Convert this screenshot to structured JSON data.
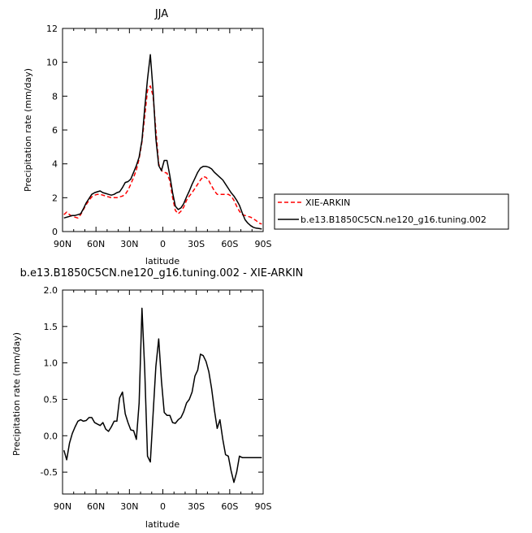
{
  "chart_data": [
    {
      "type": "line",
      "title": "JJA",
      "xlabel": "latitude",
      "ylabel": "Precipitation rate (mm/day)",
      "xlim": [
        90,
        -90
      ],
      "ylim": [
        0,
        12
      ],
      "x_ticks": [
        90,
        60,
        30,
        0,
        -30,
        -60,
        -90
      ],
      "x_tick_labels": [
        "90N",
        "60N",
        "30N",
        "0",
        "30S",
        "60S",
        "90S"
      ],
      "y_ticks": [
        0,
        2,
        4,
        6,
        8,
        10,
        12
      ],
      "y_tick_labels": [
        "0",
        "2",
        "4",
        "6",
        "8",
        "10",
        "12"
      ],
      "grid": false,
      "legend_placement": "right",
      "series": [
        {
          "name": "XIE-ARKIN",
          "color": "#ff0000",
          "dash": "dashed",
          "x": [
            88.75,
            86.25,
            83.75,
            81.25,
            78.75,
            76.25,
            73.75,
            71.25,
            68.75,
            66.25,
            63.75,
            61.25,
            58.75,
            56.25,
            53.75,
            51.25,
            48.75,
            46.25,
            43.75,
            41.25,
            38.75,
            36.25,
            33.75,
            31.25,
            28.75,
            26.25,
            23.75,
            21.25,
            18.75,
            16.25,
            13.75,
            11.25,
            8.75,
            6.25,
            3.75,
            1.25,
            -1.25,
            -3.75,
            -6.25,
            -8.75,
            -11.25,
            -13.75,
            -16.25,
            -18.75,
            -21.25,
            -23.75,
            -26.25,
            -28.75,
            -31.25,
            -33.75,
            -36.25,
            -38.75,
            -41.25,
            -43.75,
            -46.25,
            -48.75,
            -51.25,
            -53.75,
            -56.25,
            -58.75,
            -61.25,
            -63.75,
            -66.25,
            -68.75,
            -71.25,
            -73.75,
            -76.25,
            -78.75,
            -81.25,
            -83.75,
            -86.25,
            -88.75
          ],
          "values": [
            1.0,
            1.15,
            1.0,
            0.9,
            0.85,
            0.8,
            1.0,
            1.3,
            1.6,
            1.85,
            2.05,
            2.15,
            2.2,
            2.2,
            2.15,
            2.1,
            2.05,
            2.0,
            2.0,
            2.0,
            2.05,
            2.1,
            2.2,
            2.45,
            2.8,
            3.2,
            3.65,
            4.3,
            5.3,
            6.8,
            8.35,
            8.6,
            8.0,
            6.0,
            4.0,
            3.6,
            3.5,
            3.45,
            3.0,
            2.0,
            1.25,
            1.05,
            1.2,
            1.45,
            1.85,
            2.1,
            2.3,
            2.55,
            2.8,
            3.05,
            3.25,
            3.2,
            3.0,
            2.7,
            2.4,
            2.2,
            2.2,
            2.2,
            2.2,
            2.2,
            2.1,
            1.85,
            1.5,
            1.2,
            1.0,
            0.95,
            0.9,
            0.85,
            0.75,
            0.65,
            0.5,
            0.45
          ]
        },
        {
          "name": "b.e13.B1850C5CN.ne120_g16.tuning.002",
          "color": "#000000",
          "dash": "solid",
          "x": [
            88.75,
            86.25,
            83.75,
            81.25,
            78.75,
            76.25,
            73.75,
            71.25,
            68.75,
            66.25,
            63.75,
            61.25,
            58.75,
            56.25,
            53.75,
            51.25,
            48.75,
            46.25,
            43.75,
            41.25,
            38.75,
            36.25,
            33.75,
            31.25,
            28.75,
            26.25,
            23.75,
            21.25,
            18.75,
            16.25,
            13.75,
            11.25,
            8.75,
            6.25,
            3.75,
            1.25,
            -1.25,
            -3.75,
            -6.25,
            -8.75,
            -11.25,
            -13.75,
            -16.25,
            -18.75,
            -21.25,
            -23.75,
            -26.25,
            -28.75,
            -31.25,
            -33.75,
            -36.25,
            -38.75,
            -41.25,
            -43.75,
            -46.25,
            -48.75,
            -51.25,
            -53.75,
            -56.25,
            -58.75,
            -61.25,
            -63.75,
            -66.25,
            -68.75,
            -71.25,
            -73.75,
            -76.25,
            -78.75,
            -81.25,
            -83.75,
            -86.25,
            -88.75
          ],
          "values": [
            0.8,
            0.85,
            0.9,
            0.95,
            0.95,
            1.0,
            1.05,
            1.35,
            1.7,
            1.95,
            2.2,
            2.3,
            2.35,
            2.4,
            2.3,
            2.25,
            2.2,
            2.15,
            2.2,
            2.3,
            2.35,
            2.6,
            2.9,
            2.95,
            3.1,
            3.5,
            3.9,
            4.4,
            5.4,
            7.3,
            9.0,
            10.45,
            8.3,
            5.5,
            3.9,
            3.6,
            4.2,
            4.2,
            3.3,
            2.3,
            1.5,
            1.3,
            1.4,
            1.65,
            2.05,
            2.4,
            2.8,
            3.15,
            3.5,
            3.75,
            3.85,
            3.85,
            3.8,
            3.7,
            3.5,
            3.35,
            3.2,
            3.05,
            2.8,
            2.55,
            2.3,
            2.1,
            1.85,
            1.55,
            1.1,
            0.7,
            0.5,
            0.35,
            0.25,
            0.2,
            0.18,
            0.15
          ]
        }
      ]
    },
    {
      "type": "line",
      "title": "b.e13.B1850C5CN.ne120_g16.tuning.002 - XIE-ARKIN",
      "xlabel": "latitude",
      "ylabel": "Precipitation rate (mm/day)",
      "xlim": [
        90,
        -90
      ],
      "ylim": [
        -0.8,
        2.0
      ],
      "x_ticks": [
        90,
        60,
        30,
        0,
        -30,
        -60,
        -90
      ],
      "x_tick_labels": [
        "90N",
        "60N",
        "30N",
        "0",
        "30S",
        "60S",
        "90S"
      ],
      "y_ticks": [
        -0.5,
        0.0,
        0.5,
        1.0,
        1.5,
        2.0
      ],
      "y_tick_labels": [
        "-0.5",
        "0.0",
        "0.5",
        "1.0",
        "1.5",
        "2.0"
      ],
      "grid": false,
      "series": [
        {
          "color": "#000000",
          "dash": "solid",
          "x": [
            88.75,
            86.25,
            83.75,
            81.25,
            78.75,
            76.25,
            73.75,
            71.25,
            68.75,
            66.25,
            63.75,
            61.25,
            58.75,
            56.25,
            53.75,
            51.25,
            48.75,
            46.25,
            43.75,
            41.25,
            38.75,
            36.25,
            33.75,
            31.25,
            28.75,
            26.25,
            23.75,
            21.25,
            18.75,
            16.25,
            13.75,
            11.25,
            8.75,
            6.25,
            3.75,
            1.25,
            -1.25,
            -3.75,
            -6.25,
            -8.75,
            -11.25,
            -13.75,
            -16.25,
            -18.75,
            -21.25,
            -23.75,
            -26.25,
            -28.75,
            -31.25,
            -33.75,
            -36.25,
            -38.75,
            -41.25,
            -43.75,
            -46.25,
            -48.75,
            -51.25,
            -53.75,
            -56.25,
            -58.75,
            -61.25,
            -63.75,
            -66.25,
            -68.75,
            -71.25,
            -73.75,
            -76.25,
            -78.75,
            -81.25,
            -83.75,
            -86.25,
            -88.75
          ],
          "values": [
            -0.2,
            -0.33,
            -0.1,
            0.03,
            0.12,
            0.2,
            0.22,
            0.2,
            0.21,
            0.25,
            0.25,
            0.18,
            0.16,
            0.14,
            0.18,
            0.09,
            0.06,
            0.12,
            0.2,
            0.2,
            0.52,
            0.6,
            0.3,
            0.18,
            0.08,
            0.07,
            -0.05,
            0.45,
            1.75,
            0.9,
            -0.28,
            -0.36,
            0.3,
            0.95,
            1.33,
            0.75,
            0.32,
            0.28,
            0.28,
            0.18,
            0.17,
            0.22,
            0.25,
            0.33,
            0.45,
            0.5,
            0.6,
            0.82,
            0.9,
            1.12,
            1.1,
            1.02,
            0.88,
            0.65,
            0.35,
            0.1,
            0.22,
            -0.05,
            -0.26,
            -0.28,
            -0.48,
            -0.64,
            -0.5,
            -0.28,
            -0.3,
            -0.3,
            -0.3,
            -0.3,
            -0.3,
            -0.3,
            -0.3,
            -0.3
          ]
        }
      ]
    }
  ]
}
